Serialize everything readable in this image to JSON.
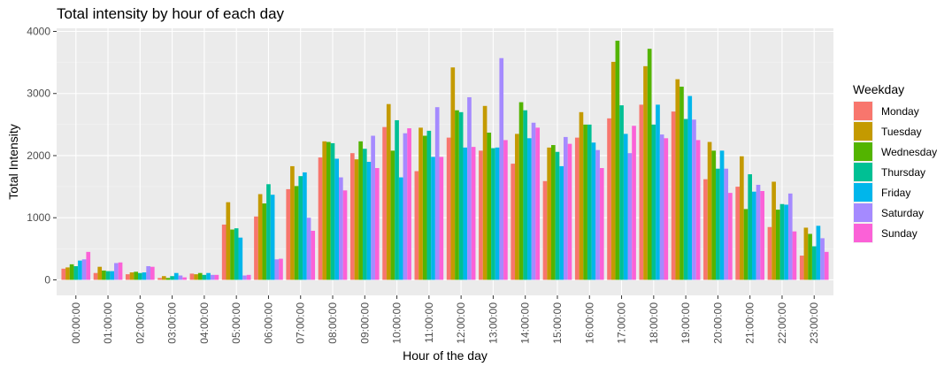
{
  "chart_data": {
    "type": "bar",
    "title": "Total intensity by hour of each day",
    "xlabel": "Hour of the day",
    "ylabel": "Total Intensity",
    "ylim": [
      -250,
      4050
    ],
    "yticks": [
      0,
      1000,
      2000,
      3000,
      4000
    ],
    "grid": true,
    "legend_title": "Weekday",
    "legend_position": "right",
    "categories": [
      "00:00:00",
      "01:00:00",
      "02:00:00",
      "03:00:00",
      "04:00:00",
      "05:00:00",
      "06:00:00",
      "07:00:00",
      "08:00:00",
      "09:00:00",
      "10:00:00",
      "11:00:00",
      "12:00:00",
      "13:00:00",
      "14:00:00",
      "15:00:00",
      "16:00:00",
      "17:00:00",
      "18:00:00",
      "19:00:00",
      "20:00:00",
      "21:00:00",
      "22:00:00",
      "23:00:00"
    ],
    "series": [
      {
        "name": "Monday",
        "color": "#F8766D",
        "values": [
          180,
          110,
          90,
          30,
          100,
          890,
          1020,
          1460,
          1970,
          2040,
          2460,
          1750,
          2290,
          2080,
          1870,
          1590,
          2290,
          2600,
          2820,
          2710,
          1620,
          1500,
          850,
          390
        ]
      },
      {
        "name": "Tuesday",
        "color": "#C49A00",
        "values": [
          200,
          210,
          120,
          60,
          90,
          1250,
          1380,
          1830,
          2230,
          1940,
          2830,
          2450,
          3420,
          2800,
          2350,
          2130,
          2700,
          3510,
          3440,
          3230,
          2220,
          1990,
          1580,
          840
        ]
      },
      {
        "name": "Wednesday",
        "color": "#53B400",
        "values": [
          250,
          150,
          130,
          30,
          110,
          810,
          1230,
          1510,
          2220,
          2230,
          2080,
          2320,
          2730,
          2370,
          2860,
          2170,
          2500,
          3850,
          3720,
          3110,
          2080,
          1140,
          1130,
          740
        ]
      },
      {
        "name": "Thursday",
        "color": "#00C094",
        "values": [
          220,
          140,
          110,
          60,
          80,
          830,
          1540,
          1670,
          2200,
          2110,
          2570,
          2400,
          2700,
          2120,
          2730,
          2060,
          2500,
          2810,
          2500,
          2590,
          1790,
          1700,
          1220,
          540
        ]
      },
      {
        "name": "Friday",
        "color": "#00B6EB",
        "values": [
          310,
          140,
          120,
          110,
          110,
          680,
          1370,
          1730,
          1950,
          1900,
          1650,
          1980,
          2130,
          2130,
          2280,
          1830,
          2210,
          2350,
          2820,
          2960,
          2080,
          1420,
          1210,
          870
        ]
      },
      {
        "name": "Saturday",
        "color": "#A58AFF",
        "values": [
          330,
          270,
          220,
          70,
          80,
          70,
          330,
          1000,
          1650,
          2320,
          2360,
          2780,
          2940,
          3570,
          2530,
          2300,
          2090,
          2040,
          2340,
          2580,
          1790,
          1530,
          1390,
          670
        ]
      },
      {
        "name": "Sunday",
        "color": "#FB61D7",
        "values": [
          450,
          280,
          210,
          40,
          80,
          80,
          340,
          790,
          1440,
          1800,
          2440,
          1980,
          2140,
          2250,
          2450,
          2190,
          1800,
          2480,
          2280,
          2250,
          1400,
          1430,
          780,
          450
        ]
      }
    ]
  }
}
